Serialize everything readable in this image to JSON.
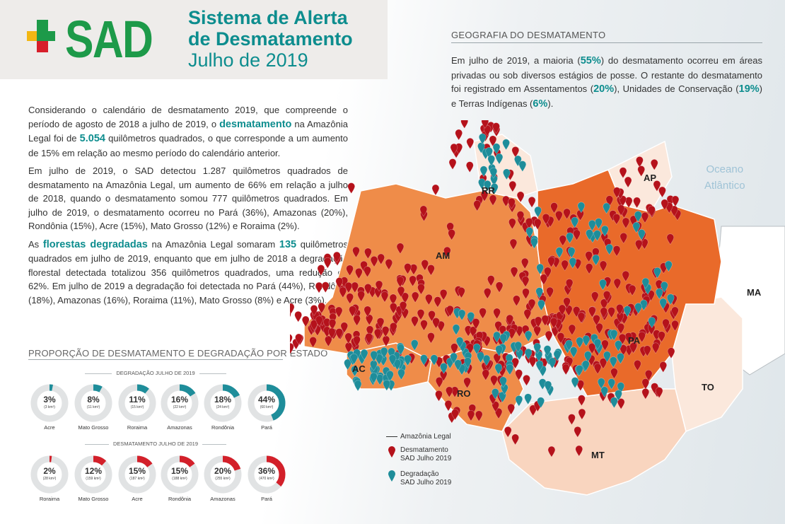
{
  "header": {
    "brand": "SAD",
    "title_line1": "Sistema de Alerta",
    "title_line2": "de Desmatamento",
    "title_line3": "Julho de 2019"
  },
  "intro": {
    "p1_a": "Considerando o calendário de desmatamento 2019, que compreende o período de agosto de 2018 a julho de 2019, o ",
    "p1_hl": "desmatamento",
    "p1_b": " na Amazônia Legal foi de ",
    "p1_num": "5.054",
    "p1_c": " quilômetros quadrados, o que corresponde a um aumento de 15% em relação ao mesmo período do calendário anterior.",
    "p2": "Em julho de 2019, o SAD detectou 1.287 quilômetros quadrados de desmatamento na Amazônia Legal, um aumento de 66% em relação a julho de 2018, quando o desmatamento somou 777 quilômetros quadrados. Em julho de 2019, o desmatamento ocorreu no Pará (36%), Amazonas (20%), Rondônia (15%), Acre (15%), Mato Grosso (12%) e Roraima (2%).",
    "p3_a": "As ",
    "p3_hl": "florestas degradadas",
    "p3_b": " na Amazônia Legal somaram ",
    "p3_num": "135",
    "p3_c": " quilômetros quadrados em julho de 2019, enquanto que em julho de 2018 a degradação florestal detectada totalizou 356 quilômetros quadrados, uma redução de 62%. Em julho de 2019 a degradação foi detectada no Pará (44%), Rondônia (18%), Amazonas (16%), Roraima (11%), Mato Grosso (8%) e Acre (3%)."
  },
  "geography": {
    "title": "GEOGRAFIA DO DESMATAMENTO",
    "t_a": "Em julho de 2019, a maioria (",
    "t_b": "55%",
    "t_c": ") do desmatamento ocorreu em áreas privadas ou sob diversos estágios de posse. O restante do desmatamento foi registrado em  Assentamentos (",
    "t_d": "20%",
    "t_e": "), Unidades de Conservação (",
    "t_f": "19%",
    "t_g": ") e Terras Indígenas (",
    "t_h": "6%",
    "t_i": ")."
  },
  "proportion": {
    "title": "PROPORÇÃO DE DESMATAMENTO E DEGRADAÇÃO POR ESTADO",
    "degradation_title": "DEGRADAÇÃO JULHO DE 2019",
    "deforestation_title": "DESMATAMENTO JULHO DE 2019",
    "degradation": [
      {
        "state": "Acre",
        "pct": "3%",
        "area": "(3 km²)",
        "value": 3
      },
      {
        "state": "Mato Grosso",
        "pct": "8%",
        "area": "(11 km²)",
        "value": 8
      },
      {
        "state": "Roraima",
        "pct": "11%",
        "area": "(15 km²)",
        "value": 11
      },
      {
        "state": "Amazonas",
        "pct": "16%",
        "area": "(22 km²)",
        "value": 16
      },
      {
        "state": "Rondônia",
        "pct": "18%",
        "area": "(24 km²)",
        "value": 18
      },
      {
        "state": "Pará",
        "pct": "44%",
        "area": "(60 km²)",
        "value": 44
      }
    ],
    "deforestation": [
      {
        "state": "Roraima",
        "pct": "2%",
        "area": "(28 km²)",
        "value": 2
      },
      {
        "state": "Mato Grosso",
        "pct": "12%",
        "area": "(159 km²)",
        "value": 12
      },
      {
        "state": "Acre",
        "pct": "15%",
        "area": "(187 km²)",
        "value": 15
      },
      {
        "state": "Rondônia",
        "pct": "15%",
        "area": "(188 km²)",
        "value": 15
      },
      {
        "state": "Amazonas",
        "pct": "20%",
        "area": "(255 km²)",
        "value": 20
      },
      {
        "state": "Pará",
        "pct": "36%",
        "area": "(470 km²)",
        "value": 36
      }
    ],
    "colors": {
      "degradation": "#1e8d9a",
      "deforestation": "#d3202a",
      "ring_bg": "#e1e3e4"
    }
  },
  "map": {
    "states": {
      "RR": "RR",
      "AP": "AP",
      "AM": "AM",
      "PA": "PA",
      "MA": "MA",
      "AC": "AC",
      "RO": "RO",
      "TO": "TO",
      "MT": "MT"
    },
    "ocean_line1": "Oceano",
    "ocean_line2": "Atlântico",
    "colors": {
      "dark_state": "#ef8c49",
      "mid_state": "#e96a2a",
      "light_state": "#f9d5bf",
      "pale_state": "#fbe8dc",
      "outside": "#ffffff",
      "def_marker": "#b5121b",
      "deg_marker": "#1e8d9a"
    }
  },
  "legend": {
    "legal": "Amazônia Legal",
    "def_line1": "Desmatamento",
    "def_line2": "SAD Julho 2019",
    "deg_line1": "Degradação",
    "deg_line2": "SAD Julho 2019"
  }
}
